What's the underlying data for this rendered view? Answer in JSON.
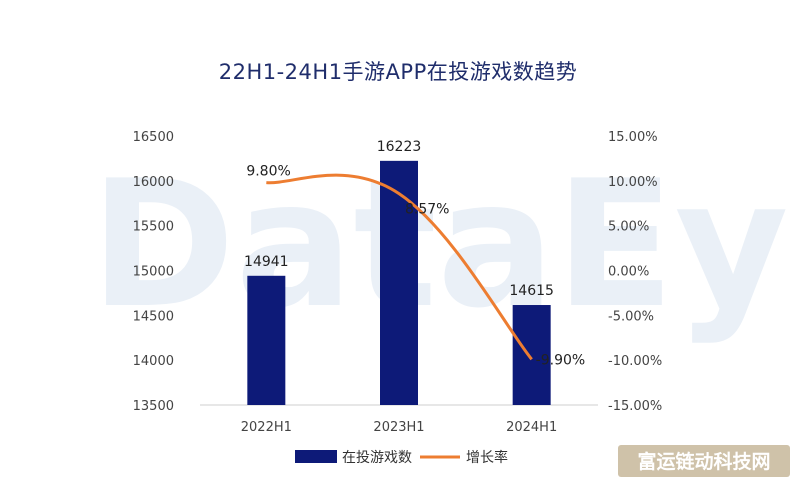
{
  "watermark": "DataEye",
  "corner_brand": "富运链动科技网",
  "colors": {
    "bar": "#0d1a78",
    "line": "#ed7d31",
    "title": "#1f2d6b"
  },
  "chart_data": {
    "type": "bar",
    "title": "22H1-24H1手游APP在投游戏数趋势",
    "categories": [
      "2022H1",
      "2023H1",
      "2024H1"
    ],
    "series": [
      {
        "name": "在投游戏数",
        "type": "bar",
        "axis": "left",
        "values": [
          14941,
          16223,
          14615
        ]
      },
      {
        "name": "增长率",
        "type": "line",
        "axis": "right",
        "values": [
          9.8,
          8.57,
          -9.9
        ],
        "labels": [
          "9.80%",
          "8.57%",
          "-9.90%"
        ]
      }
    ],
    "ylim_left": [
      13500,
      16500
    ],
    "yticks_left": [
      13500,
      14000,
      14500,
      15000,
      15500,
      16000,
      16500
    ],
    "ylim_right": [
      -15,
      15
    ],
    "yticks_right": [
      "-15.00%",
      "-10.00%",
      "-5.00%",
      "0.00%",
      "5.00%",
      "10.00%",
      "15.00%"
    ],
    "grid": false,
    "legend_position": "bottom-center"
  }
}
